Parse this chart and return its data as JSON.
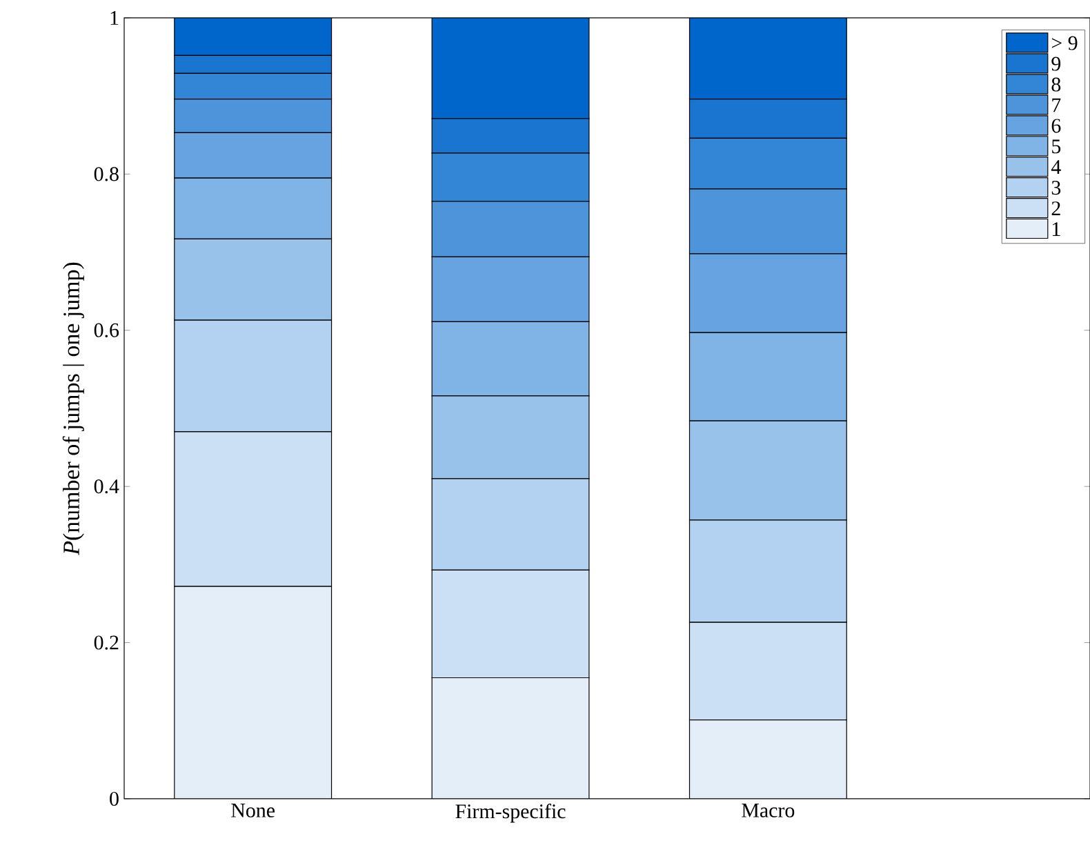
{
  "chart_data": {
    "type": "bar",
    "stacked": true,
    "ylabel": "*P*(number of jumps | one jump)",
    "categories": [
      "None",
      "Firm-specific",
      "Macro"
    ],
    "series": [
      {
        "name": "1",
        "color": "#e3eef9",
        "values": [
          0.272,
          0.155,
          0.101
        ]
      },
      {
        "name": "2",
        "color": "#cce0f5",
        "values": [
          0.198,
          0.138,
          0.125
        ]
      },
      {
        "name": "3",
        "color": "#b3d1f0",
        "values": [
          0.143,
          0.117,
          0.131
        ]
      },
      {
        "name": "4",
        "color": "#99c2eb",
        "values": [
          0.104,
          0.106,
          0.127
        ]
      },
      {
        "name": "5",
        "color": "#80b3e6",
        "values": [
          0.078,
          0.095,
          0.113
        ]
      },
      {
        "name": "6",
        "color": "#66a3e0",
        "values": [
          0.058,
          0.083,
          0.101
        ]
      },
      {
        "name": "7",
        "color": "#4d94db",
        "values": [
          0.043,
          0.071,
          0.083
        ]
      },
      {
        "name": "8",
        "color": "#3385d6",
        "values": [
          0.033,
          0.062,
          0.065
        ]
      },
      {
        "name": "9",
        "color": "#1a75d1",
        "values": [
          0.023,
          0.044,
          0.05
        ]
      },
      {
        "name": "> 9",
        "color": "#0066cc",
        "values": [
          0.048,
          0.129,
          0.104
        ]
      }
    ],
    "ylim": [
      0,
      1
    ],
    "yticks": [
      0,
      0.2,
      0.4,
      0.6,
      0.8,
      1
    ],
    "legend": "top right",
    "grid": false
  }
}
